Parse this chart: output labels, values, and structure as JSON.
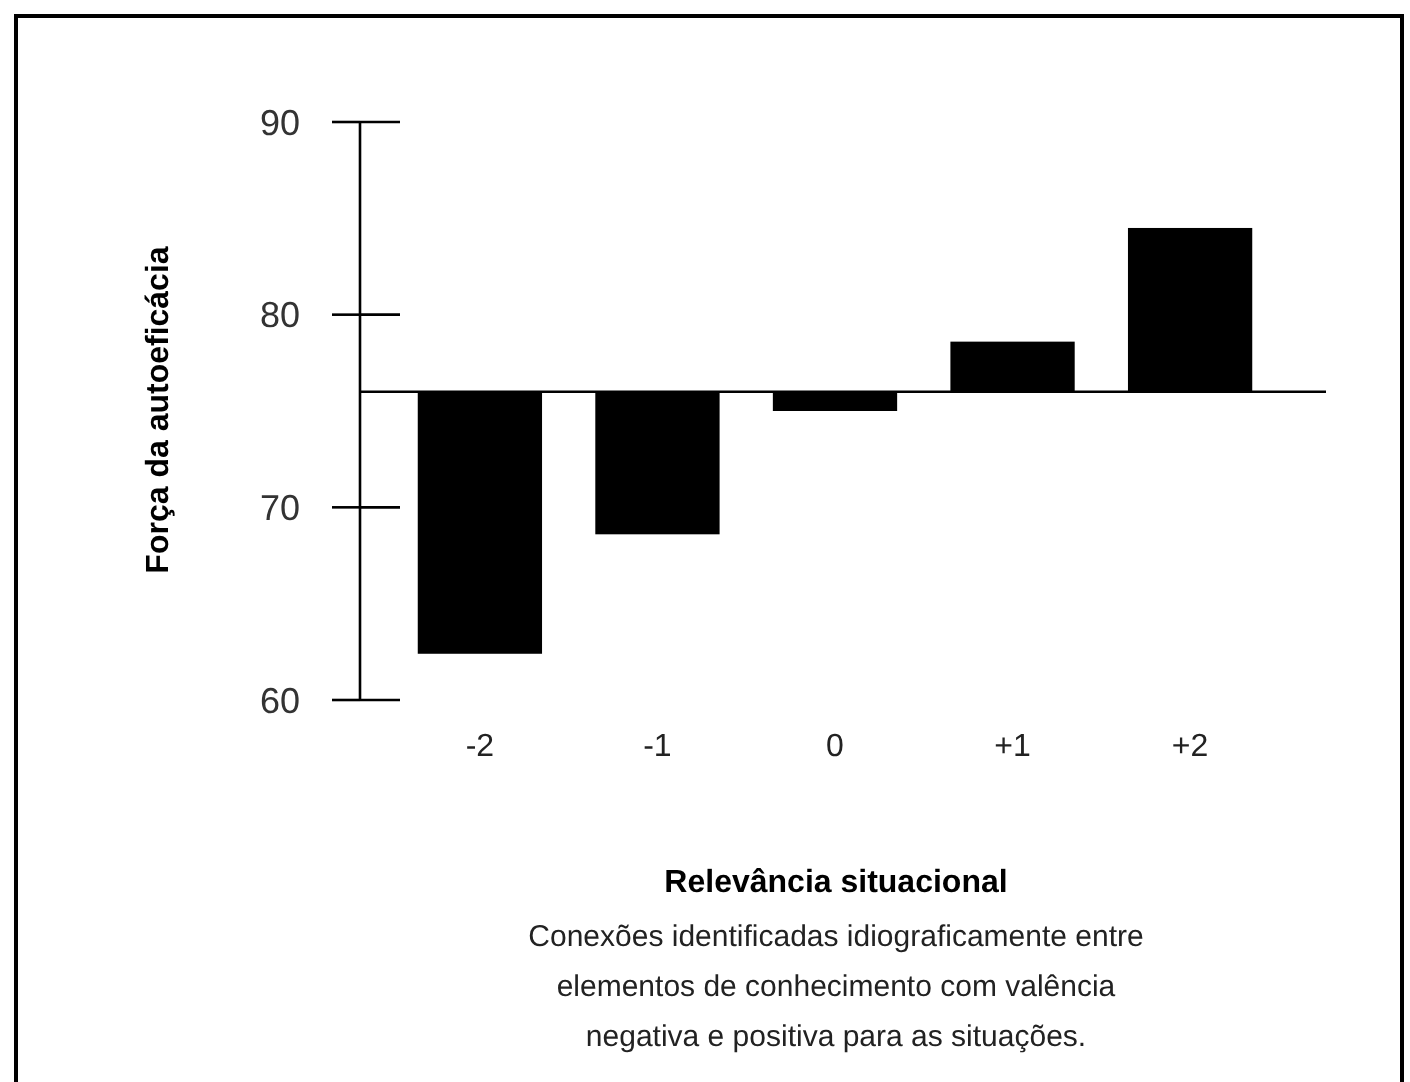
{
  "chart_data": {
    "type": "bar",
    "xlabel": "Relevância situacional",
    "ylabel": "Força da autoeficácia",
    "annotations": [
      "Conexões identificadas idiograficamente entre elementos de conhecimento com valência negativa e positiva para as situações."
    ],
    "categories": [
      "-2",
      "-1",
      "0",
      "+1",
      "+2"
    ],
    "base": [
      76,
      76,
      76,
      76,
      76
    ],
    "values": [
      -13.6,
      -7.4,
      -1,
      2.6,
      8.5
    ],
    "color": "#000000",
    "ylim": [
      60,
      90
    ],
    "yticks": [
      60,
      70,
      80,
      90
    ],
    "ref_lines": [
      {
        "axis": "y",
        "value": 76,
        "color": "#000000"
      }
    ],
    "grid": false
  }
}
